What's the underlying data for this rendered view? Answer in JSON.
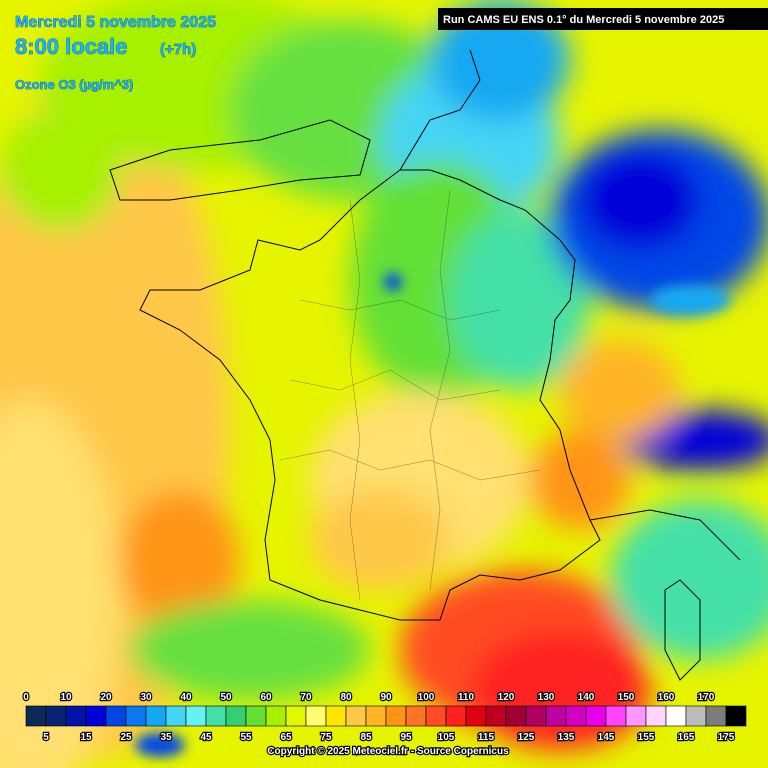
{
  "header": {
    "date": "Mercredi 5 novembre 2025",
    "time": "8:00 locale",
    "offset": "(+7h)",
    "parameter": "Ozone O3 (µg/m^3)",
    "run": "Run CAMS EU ENS 0.1° du Mercredi 5 novembre 2025"
  },
  "legend": {
    "labels_top": [
      "0",
      "10",
      "20",
      "30",
      "40",
      "50",
      "60",
      "70",
      "80",
      "90",
      "100",
      "110",
      "120",
      "130",
      "140",
      "150",
      "160",
      "170"
    ],
    "labels_bottom": [
      "5",
      "15",
      "25",
      "35",
      "45",
      "55",
      "65",
      "75",
      "85",
      "95",
      "105",
      "115",
      "125",
      "135",
      "145",
      "155",
      "165",
      "175"
    ],
    "colors": [
      "#0b2a55",
      "#0a2274",
      "#0012a8",
      "#0000d8",
      "#0046e6",
      "#0a78f0",
      "#14a8f2",
      "#44d4f4",
      "#66f2ee",
      "#44e0a8",
      "#34d070",
      "#64e034",
      "#a6f000",
      "#e2f800",
      "#ffff70",
      "#ffe600",
      "#ffc848",
      "#ffb428",
      "#ff9414",
      "#ff7424",
      "#ff4c24",
      "#ff2020",
      "#e00010",
      "#c00020",
      "#a00034",
      "#b00064",
      "#c000a0",
      "#d400c4",
      "#e800e8",
      "#ff44ff",
      "#ff96ff",
      "#ffd4ff",
      "#ffffff",
      "#bcbcbc",
      "#7c7c7c",
      "#000000"
    ]
  },
  "footer": {
    "copyright": "Copyright © 2025 Meteociel.fr - Source Copernicus"
  }
}
